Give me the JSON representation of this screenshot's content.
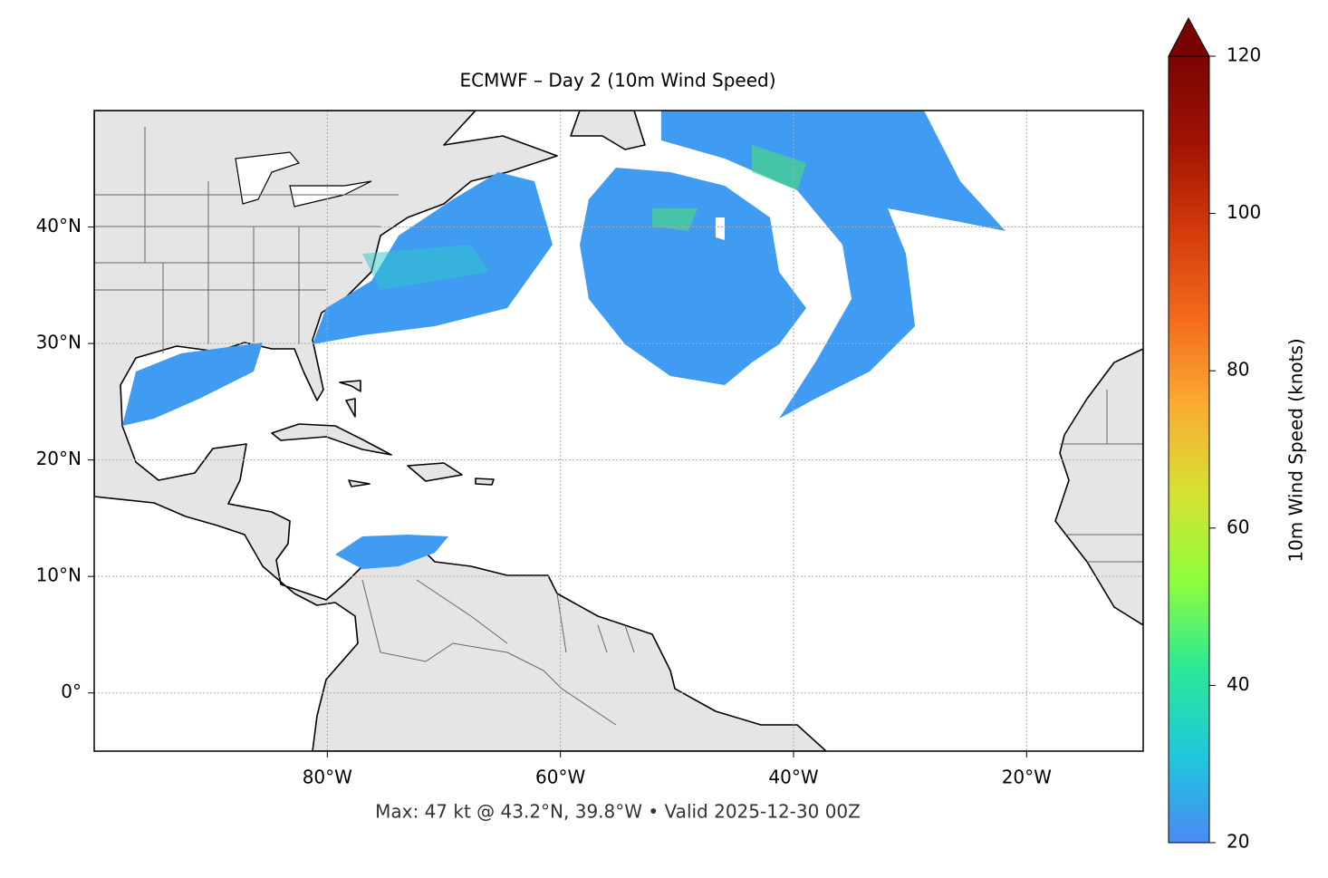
{
  "chart_data": {
    "type": "map",
    "title": "ECMWF – Day 2 (10m Wind Speed)",
    "footnote": "Max: 47 kt @ 43.2°N, 39.8°W • Valid 2025-12-30 00Z",
    "xlim": [
      -100,
      -10
    ],
    "ylim": [
      -5,
      50
    ],
    "xticks": [
      {
        "value": -80,
        "label": "80°W"
      },
      {
        "value": -60,
        "label": "60°W"
      },
      {
        "value": -40,
        "label": "40°W"
      },
      {
        "value": -20,
        "label": "20°W"
      }
    ],
    "yticks": [
      {
        "value": 0,
        "label": "0°"
      },
      {
        "value": 10,
        "label": "10°N"
      },
      {
        "value": 20,
        "label": "20°N"
      },
      {
        "value": 30,
        "label": "30°N"
      },
      {
        "value": 40,
        "label": "40°N"
      }
    ],
    "grid": true,
    "colorbar": {
      "label": "10m Wind Speed (knots)",
      "lim": [
        20,
        120
      ],
      "ticks": [
        20,
        40,
        60,
        80,
        100,
        120
      ],
      "colors": [
        "#4a8af5",
        "#1fc8dc",
        "#2be896",
        "#90fd3c",
        "#d6e133",
        "#fbac33",
        "#f36b1b",
        "#d33b0b",
        "#a11303",
        "#7a0403"
      ]
    }
  }
}
